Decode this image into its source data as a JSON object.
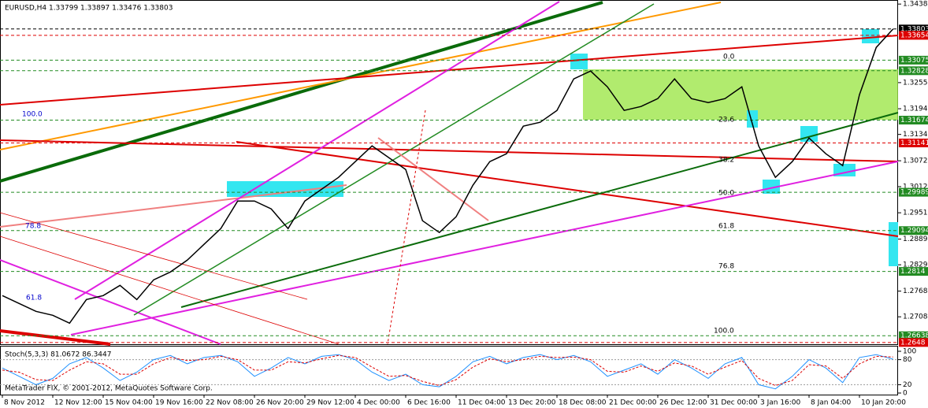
{
  "chart_data": [
    {
      "type": "line",
      "title": "EURUSD,H4 1.33799 1.33897 1.33476 1.33803",
      "footer": "MetaTrader FIX, © 2001-2012, MetaQuotes Software Corp.",
      "categories": [
        "8 Nov 2012",
        null,
        null,
        "12 Nov 12:00",
        null,
        null,
        "15 Nov 04:00",
        null,
        null,
        "19 Nov 16:00",
        null,
        null,
        "22 Nov 08:00",
        null,
        null,
        "26 Nov 20:00",
        null,
        null,
        "29 Nov 12:00",
        null,
        null,
        "4 Dec 00:00",
        null,
        null,
        "6 Dec 16:00",
        null,
        null,
        "11 Dec 04:00",
        null,
        null,
        "13 Dec 20:00",
        null,
        null,
        "18 Dec 08:00",
        null,
        null,
        "21 Dec 00:00",
        null,
        null,
        "26 Dec 12:00",
        null,
        null,
        "31 Dec 00:00",
        null,
        null,
        "3 Jan 16:00",
        null,
        null,
        "8 Jan 04:00",
        null,
        null,
        "10 Jan 20:00",
        null,
        null
      ],
      "series": [
        {
          "color": "#000000",
          "values": [
            1.27576,
            1.27392,
            1.27208,
            1.27116,
            1.26932,
            1.27484,
            1.27576,
            1.27815,
            1.27484,
            1.27944,
            1.28128,
            1.28404,
            1.28772,
            1.2914,
            1.29784,
            1.29784,
            1.296,
            1.2914,
            1.29784,
            1.3006,
            1.30336,
            1.30704,
            1.31073,
            1.30796,
            1.3052,
            1.29324,
            1.29048,
            1.29416,
            1.30152,
            1.30704,
            1.30888,
            1.31533,
            1.31625,
            1.31901,
            1.32637,
            1.32821,
            1.32453,
            1.31901,
            1.31993,
            1.32177,
            1.32637,
            1.32177,
            1.32085,
            1.32177,
            1.32453,
            1.31073,
            1.30336,
            1.30704,
            1.31257,
            1.30888,
            1.30612,
            1.32269,
            1.33373,
            1.33803
          ]
        }
      ],
      "ylim": [
        1.2644,
        1.3448
      ],
      "yticks": [
        1.34385,
        {
          "value": 1.3255,
          "label": "1.32550"
        },
        {
          "value": 1.3194,
          "label": "1.31940"
        },
        {
          "value": 1.3134,
          "label": "1.31340"
        },
        1.30725,
        {
          "value": 1.3012,
          "label": "1.30120"
        },
        {
          "value": 1.2951,
          "label": "1.29510"
        },
        1.28895,
        1.28295,
        {
          "value": 1.2768,
          "label": "1.27680"
        },
        {
          "value": 1.2708,
          "label": "1.27080"
        }
      ],
      "levels": [
        {
          "value": 1.33803,
          "color": "#000000"
        },
        {
          "value": 1.33654,
          "color": "#dd0000"
        },
        {
          "value": 1.33075,
          "color": "#228b22"
        },
        {
          "value": 1.32828,
          "color": "#228b22"
        },
        {
          "value": 1.31674,
          "color": "#228b22"
        },
        {
          "value": 1.31141,
          "color": "#dd0000"
        },
        {
          "value": 1.29989,
          "color": "#228b22"
        },
        {
          "value": 1.29094,
          "color": "#228b22"
        },
        {
          "value": 1.2814,
          "color": "#228b22"
        },
        {
          "value": 1.26638,
          "color": "#228b22"
        },
        {
          "value": 1.2648,
          "color": "#dd0000"
        }
      ],
      "annotations": [
        "0.0",
        "23.6",
        "38.2",
        "50.0",
        "61.8",
        "76.8",
        "100.0",
        "100.0",
        "78.8",
        "61.8"
      ]
    },
    {
      "type": "line",
      "title": "Stoch(5,3,3) 81.0672 86.3447",
      "series": [
        {
          "color": "#1e90ff",
          "values": [
            60,
            40,
            20,
            35,
            70,
            85,
            60,
            30,
            50,
            80,
            90,
            70,
            85,
            90,
            75,
            40,
            60,
            85,
            70,
            88,
            92,
            80,
            50,
            30,
            45,
            20,
            15,
            40,
            75,
            88,
            70,
            85,
            92,
            80,
            90,
            75,
            40,
            55,
            70,
            45,
            80,
            60,
            35,
            70,
            85,
            20,
            10,
            40,
            80,
            60,
            25,
            85,
            92,
            81.0672
          ]
        },
        {
          "color": "#dd0000",
          "values": [
            55,
            50,
            32,
            30,
            55,
            75,
            70,
            45,
            45,
            70,
            85,
            78,
            80,
            88,
            80,
            55,
            55,
            75,
            72,
            82,
            90,
            85,
            62,
            40,
            42,
            28,
            18,
            32,
            62,
            82,
            75,
            80,
            88,
            85,
            86,
            80,
            52,
            50,
            65,
            52,
            72,
            65,
            45,
            62,
            78,
            35,
            18,
            30,
            68,
            65,
            35,
            70,
            88,
            86.3447
          ]
        }
      ],
      "ylim": [
        0,
        100
      ],
      "yticks": [
        100,
        80,
        20,
        0
      ]
    }
  ]
}
